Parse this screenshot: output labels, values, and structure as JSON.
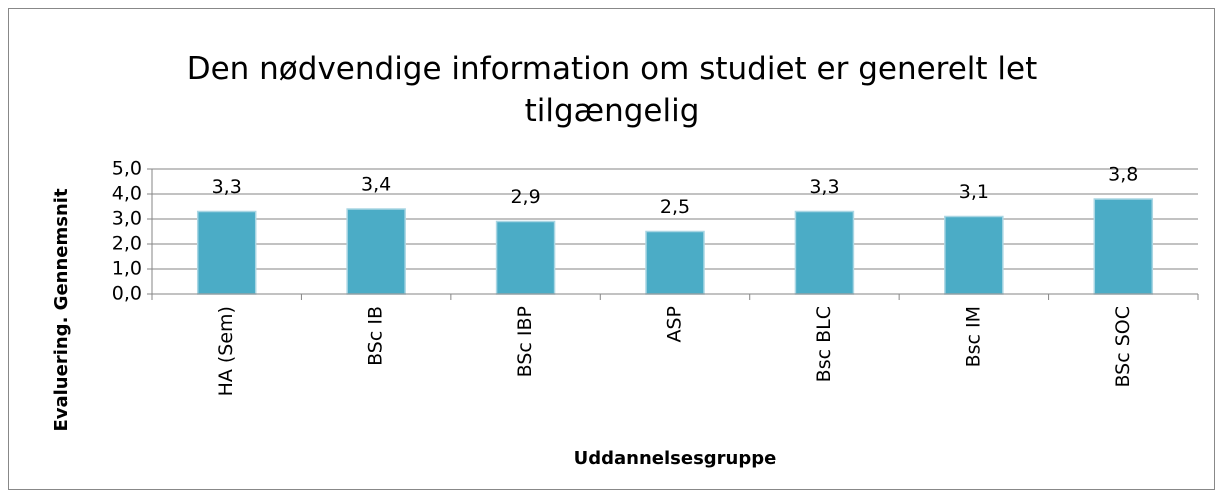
{
  "chart_data": {
    "type": "bar",
    "title": "Den nødvendige information om studiet er generelt let tilgængelig",
    "x_label": "Uddannelsesgruppe",
    "y_label": "Evaluering. Gennemsnit",
    "categories": [
      "HA (Sem)",
      "BSc IB",
      "BSc IBP",
      "ASP",
      "Bsc BLC",
      "Bsc IM",
      "BSc SOC"
    ],
    "values": [
      3.3,
      3.4,
      2.9,
      2.5,
      3.3,
      3.1,
      3.8
    ],
    "value_labels": [
      "3,3",
      "3,4",
      "2,9",
      "2,5",
      "3,3",
      "3,1",
      "3,8"
    ],
    "color": "#4bacc6",
    "ylim": [
      0,
      5
    ],
    "yticks": [
      {
        "value": 0,
        "label": "0,0"
      },
      {
        "value": 1,
        "label": "1,0"
      },
      {
        "value": 2,
        "label": "2,0"
      },
      {
        "value": 3,
        "label": "3,0"
      },
      {
        "value": 4,
        "label": "4,0"
      },
      {
        "value": 5,
        "label": "5,0"
      }
    ],
    "grid": true
  }
}
